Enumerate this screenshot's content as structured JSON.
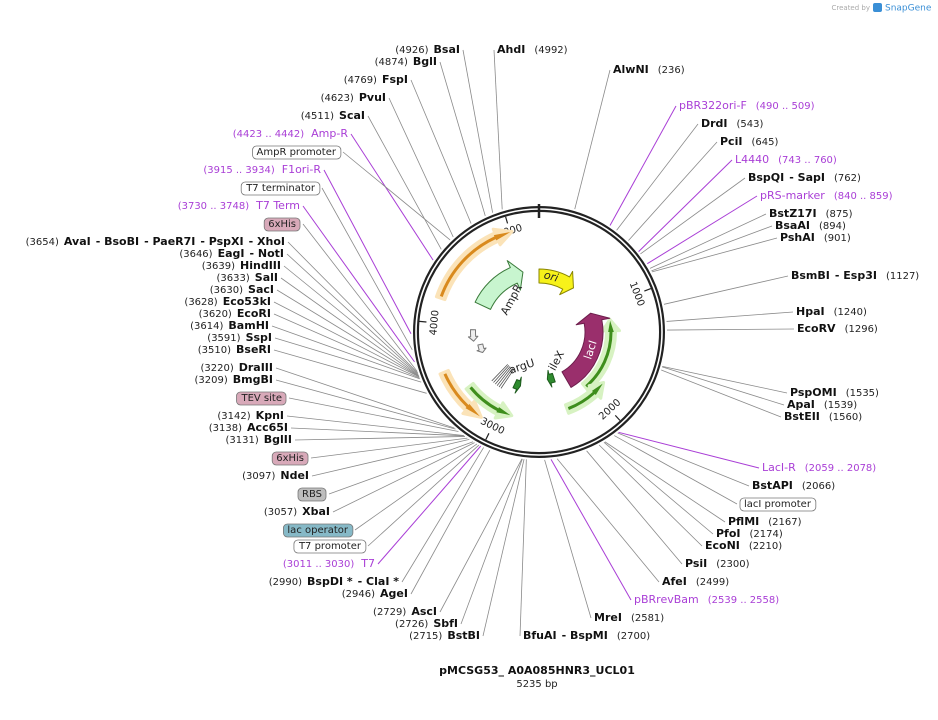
{
  "header": {
    "credit": "Created by",
    "brand": "SnapGene"
  },
  "map": {
    "title": "pMCSG53_ A0A085HNR3_UCL01",
    "length": "5235 bp",
    "ticks": [
      1000,
      2000,
      3000,
      4000,
      5000
    ],
    "features": [
      "ori",
      "AmpR",
      "lacI",
      "argU",
      "ileX"
    ]
  },
  "left_labels": [
    {
      "position": "(4926)",
      "names": [
        "BsaI"
      ]
    },
    {
      "position": "(4874)",
      "names": [
        "BglI"
      ]
    },
    {
      "position": "(4769)",
      "names": [
        "FspI"
      ]
    },
    {
      "position": "(4623)",
      "names": [
        "PvuI"
      ]
    },
    {
      "position": "(4511)",
      "names": [
        "ScaI"
      ]
    },
    {
      "range": "(4423 .. 4442)",
      "name": "Amp-R"
    },
    {
      "name": "AmpR promoter",
      "fill": "#ffffff"
    },
    {
      "range": "(3915 .. 3934)",
      "name": "F1ori-R"
    },
    {
      "name": "T7 terminator",
      "fill": "#ffffff"
    },
    {
      "range": "(3730 .. 3748)",
      "name": "T7 Term"
    },
    {
      "name": "6xHis",
      "fill": "#d8a9b9"
    },
    {
      "position": "(3654)",
      "names": [
        "AvaI",
        "- BsoBI",
        "- PaeR7I",
        "- PspXI",
        "- XhoI"
      ]
    },
    {
      "position": "(3646)",
      "names": [
        "EagI",
        "- NotI"
      ]
    },
    {
      "position": "(3639)",
      "names": [
        "HindIII"
      ]
    },
    {
      "position": "(3633)",
      "names": [
        "SalI"
      ]
    },
    {
      "position": "(3630)",
      "names": [
        "SacI"
      ]
    },
    {
      "position": "(3628)",
      "names": [
        "Eco53kI"
      ]
    },
    {
      "position": "(3620)",
      "names": [
        "EcoRI"
      ]
    },
    {
      "position": "(3614)",
      "names": [
        "BamHI"
      ]
    },
    {
      "position": "(3591)",
      "names": [
        "SspI"
      ]
    },
    {
      "position": "(3510)",
      "names": [
        "BseRI"
      ]
    },
    {
      "position": "(3220)",
      "names": [
        "DraIII"
      ]
    },
    {
      "position": "(3209)",
      "names": [
        "BmgBI"
      ]
    },
    {
      "name": "TEV site",
      "fill": "#d8a9b9"
    },
    {
      "position": "(3142)",
      "names": [
        "KpnI"
      ]
    },
    {
      "position": "(3138)",
      "names": [
        "Acc65I"
      ]
    },
    {
      "position": "(3131)",
      "names": [
        "BglII"
      ]
    },
    {
      "name": "6xHis",
      "fill": "#d8a9b9"
    },
    {
      "position": "(3097)",
      "names": [
        "NdeI"
      ]
    },
    {
      "name": "RBS",
      "fill": "#bdbdbd"
    },
    {
      "position": "(3057)",
      "names": [
        "XbaI"
      ]
    },
    {
      "name": "lac operator",
      "fill": "#86b9c7"
    },
    {
      "name": "T7 promoter",
      "fill": "#ffffff"
    },
    {
      "range": "(3011 .. 3030)",
      "name": "T7"
    },
    {
      "position": "(2990)",
      "names": [
        "BspDI *",
        "- ClaI *"
      ]
    },
    {
      "position": "(2946)",
      "names": [
        "AgeI"
      ]
    },
    {
      "position": "(2729)",
      "names": [
        "AscI"
      ]
    },
    {
      "position": "(2726)",
      "names": [
        "SbfI"
      ]
    },
    {
      "position": "(2715)",
      "names": [
        "BstBI"
      ]
    }
  ],
  "right_labels": [
    {
      "names": [
        "AhdI"
      ],
      "position": "(4992)"
    },
    {
      "names": [
        "AlwNI"
      ],
      "position": "(236)"
    },
    {
      "name": "pBR322ori-F",
      "range": "(490 .. 509)"
    },
    {
      "names": [
        "DrdI"
      ],
      "position": "(543)"
    },
    {
      "names": [
        "PciI"
      ],
      "position": "(645)"
    },
    {
      "name": "L4440",
      "range": "(743 .. 760)"
    },
    {
      "names": [
        "BspQI",
        "- SapI"
      ],
      "position": "(762)"
    },
    {
      "name": "pRS-marker",
      "range": "(840 .. 859)"
    },
    {
      "names": [
        "BstZ17I"
      ],
      "position": "(875)"
    },
    {
      "names": [
        "BsaAI"
      ],
      "position": "(894)"
    },
    {
      "names": [
        "PshAI"
      ],
      "position": "(901)"
    },
    {
      "names": [
        "BsmBI",
        "- Esp3I"
      ],
      "position": "(1127)"
    },
    {
      "names": [
        "HpaI"
      ],
      "position": "(1240)"
    },
    {
      "names": [
        "EcoRV"
      ],
      "position": "(1296)"
    },
    {
      "names": [
        "PspOMI"
      ],
      "position": "(1535)"
    },
    {
      "names": [
        "ApaI"
      ],
      "position": "(1539)"
    },
    {
      "names": [
        "BstEII"
      ],
      "position": "(1560)"
    },
    {
      "name": "LacI-R",
      "range": "(2059 .. 2078)"
    },
    {
      "names": [
        "BstAPI"
      ],
      "position": "(2066)"
    },
    {
      "name": "lacI promoter",
      "fill": "#ffffff"
    },
    {
      "names": [
        "PflMI"
      ],
      "position": "(2167)"
    },
    {
      "names": [
        "PfoI"
      ],
      "position": "(2174)"
    },
    {
      "names": [
        "EcoNI"
      ],
      "position": "(2210)"
    },
    {
      "names": [
        "PsiI"
      ],
      "position": "(2300)"
    },
    {
      "names": [
        "AfeI"
      ],
      "position": "(2499)"
    },
    {
      "name": "pBRrevBam",
      "range": "(2539 .. 2558)"
    },
    {
      "names": [
        "MreI"
      ],
      "position": "(2581)"
    },
    {
      "names": [
        "BfuAI",
        "- BspMI"
      ],
      "position": "(2700)"
    }
  ]
}
